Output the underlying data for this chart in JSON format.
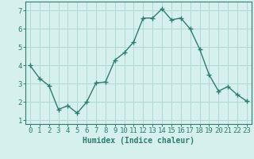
{
  "x": [
    0,
    1,
    2,
    3,
    4,
    5,
    6,
    7,
    8,
    9,
    10,
    11,
    12,
    13,
    14,
    15,
    16,
    17,
    18,
    19,
    20,
    21,
    22,
    23
  ],
  "y": [
    4.0,
    3.3,
    2.9,
    1.6,
    1.8,
    1.4,
    2.0,
    3.05,
    3.1,
    4.3,
    4.7,
    5.3,
    6.6,
    6.6,
    7.1,
    6.5,
    6.6,
    6.0,
    4.9,
    3.5,
    2.6,
    2.85,
    2.4,
    2.05
  ],
  "line_color": "#2e7d6e",
  "marker": "+",
  "marker_size": 4,
  "bg_color": "#d6f0ee",
  "grid_color": "#b0d8d5",
  "axis_color": "#2e7d6e",
  "xlabel": "Humidex (Indice chaleur)",
  "ylim": [
    0.8,
    7.5
  ],
  "xlim": [
    -0.5,
    23.5
  ],
  "yticks": [
    1,
    2,
    3,
    4,
    5,
    6,
    7
  ],
  "xticks": [
    0,
    1,
    2,
    3,
    4,
    5,
    6,
    7,
    8,
    9,
    10,
    11,
    12,
    13,
    14,
    15,
    16,
    17,
    18,
    19,
    20,
    21,
    22,
    23
  ],
  "xlabel_fontsize": 7,
  "tick_fontsize": 6.5,
  "linewidth": 1.0
}
